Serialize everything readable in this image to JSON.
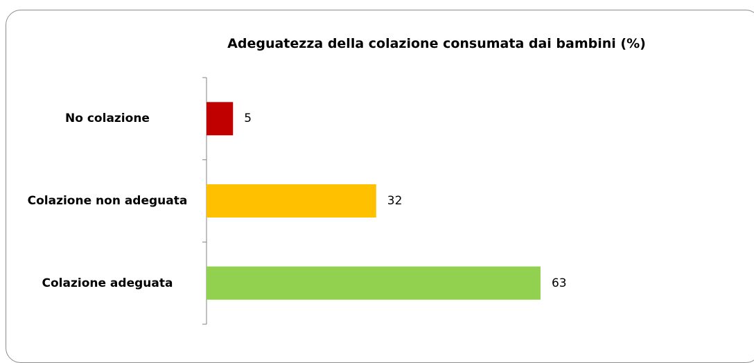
{
  "chart_data": {
    "type": "bar",
    "orientation": "horizontal",
    "title": "Adeguatezza della colazione consumata dai bambini  (%)",
    "categories": [
      "No colazione",
      "Colazione non adeguata",
      "Colazione adeguata"
    ],
    "values": [
      5,
      32,
      63
    ],
    "colors": [
      "#c00000",
      "#ffc000",
      "#92d050"
    ]
  }
}
